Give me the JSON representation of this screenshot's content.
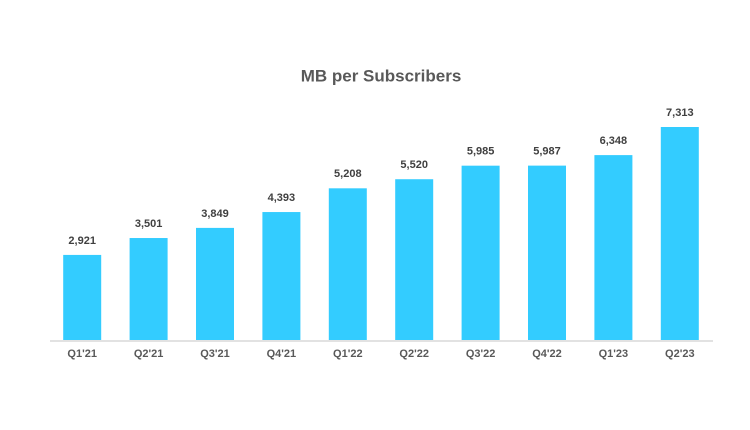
{
  "chart_data": {
    "type": "bar",
    "title": "MB per Subscribers",
    "categories": [
      "Q1'21",
      "Q2'21",
      "Q3'21",
      "Q4'21",
      "Q1'22",
      "Q2'22",
      "Q3'22",
      "Q4'22",
      "Q1'23",
      "Q2'23"
    ],
    "values": [
      2921,
      3501,
      3849,
      4393,
      5208,
      5520,
      5985,
      5987,
      6348,
      7313
    ],
    "value_labels": [
      "2,921",
      "3,501",
      "3,849",
      "4,393",
      "5,208",
      "5,520",
      "5,985",
      "5,987",
      "6,348",
      "7,313"
    ],
    "color": "#33ccff"
  }
}
